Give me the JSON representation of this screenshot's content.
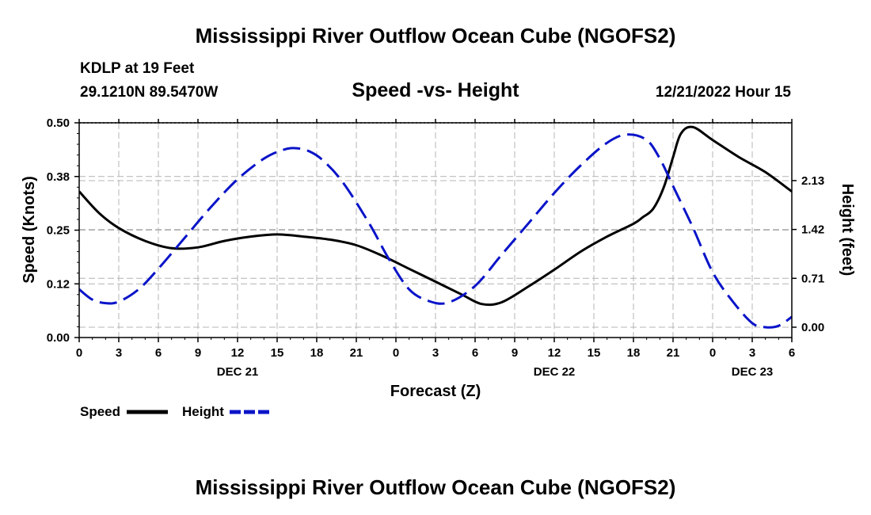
{
  "header": {
    "title": "Mississippi River Outflow Ocean Cube (NGOFS2)",
    "station": "KDLP at 19 Feet",
    "coords": "29.1210N  89.5470W",
    "subtitle": "Speed -vs- Height",
    "datetime": "12/21/2022 Hour 15"
  },
  "footer": {
    "title": "Mississippi River Outflow Ocean Cube (NGOFS2)"
  },
  "legend": {
    "speed_label": "Speed",
    "height_label": "Height"
  },
  "colors": {
    "speed": "#000000",
    "height": "#0a14c8",
    "grid": "#b4b4b4"
  },
  "chart_data": {
    "type": "line",
    "title": "Speed -vs- Height",
    "xlabel": "Forecast (Z)",
    "ylabel": "Speed (Knots)",
    "y2label": "Height (feet)",
    "xlim": [
      0,
      54
    ],
    "ylim": [
      0,
      0.5
    ],
    "y2lim": [
      -0.15,
      2.97
    ],
    "x_tick_values": [
      0,
      3,
      6,
      9,
      12,
      15,
      18,
      21,
      24,
      27,
      30,
      33,
      36,
      39,
      42,
      45,
      48,
      51,
      54
    ],
    "x_tick_labels": [
      "0",
      "3",
      "6",
      "9",
      "12",
      "15",
      "18",
      "21",
      "0",
      "3",
      "6",
      "9",
      "12",
      "15",
      "18",
      "21",
      "0",
      "3",
      "6"
    ],
    "date_labels": [
      {
        "x": 12,
        "label": "DEC 21"
      },
      {
        "x": 36,
        "label": "DEC 22"
      },
      {
        "x": 51,
        "label": "DEC 23"
      }
    ],
    "y_ticks": [
      0.0,
      0.125,
      0.25,
      0.375,
      0.5
    ],
    "y_tick_labels": [
      "0.00",
      "0.12",
      "0.25",
      "0.38",
      "0.50"
    ],
    "y2_ticks": [
      0.0,
      0.71,
      1.42,
      2.13
    ],
    "y2_tick_labels": [
      "0.00",
      "0.71",
      "1.42",
      "2.13"
    ],
    "grid": true,
    "legend_position": "bottom-left",
    "series": [
      {
        "name": "Speed",
        "axis": "left",
        "style": "solid",
        "x": [
          0,
          1.5,
          3,
          5,
          7,
          9,
          11,
          13,
          15,
          17,
          19,
          21,
          23,
          25,
          27,
          29,
          30.5,
          32,
          34,
          36,
          38,
          40,
          42,
          42.7,
          43.5,
          44.3,
          45,
          45.6,
          46.5,
          48,
          50,
          52,
          54
        ],
        "values": [
          0.34,
          0.29,
          0.255,
          0.225,
          0.208,
          0.21,
          0.225,
          0.235,
          0.24,
          0.235,
          0.228,
          0.215,
          0.19,
          0.16,
          0.13,
          0.1,
          0.078,
          0.082,
          0.118,
          0.158,
          0.2,
          0.235,
          0.265,
          0.28,
          0.3,
          0.35,
          0.42,
          0.475,
          0.49,
          0.46,
          0.42,
          0.385,
          0.34
        ]
      },
      {
        "name": "Height",
        "axis": "right",
        "style": "dashed",
        "x": [
          0,
          1,
          2,
          3,
          4.5,
          6,
          8,
          10,
          12,
          14,
          15.5,
          16.5,
          17.5,
          18.5,
          20,
          22,
          23.5,
          25,
          26.5,
          28,
          30,
          32,
          34,
          36,
          38,
          40,
          41.5,
          43,
          44,
          45,
          46.5,
          48,
          49.5,
          51,
          52,
          53,
          54
        ],
        "values": [
          0.55,
          0.4,
          0.35,
          0.37,
          0.55,
          0.85,
          1.3,
          1.75,
          2.15,
          2.45,
          2.58,
          2.6,
          2.55,
          2.42,
          2.1,
          1.5,
          0.98,
          0.55,
          0.38,
          0.36,
          0.6,
          1.05,
          1.5,
          1.95,
          2.35,
          2.68,
          2.8,
          2.72,
          2.45,
          2.05,
          1.45,
          0.8,
          0.38,
          0.06,
          0.0,
          0.02,
          0.15
        ]
      }
    ]
  }
}
